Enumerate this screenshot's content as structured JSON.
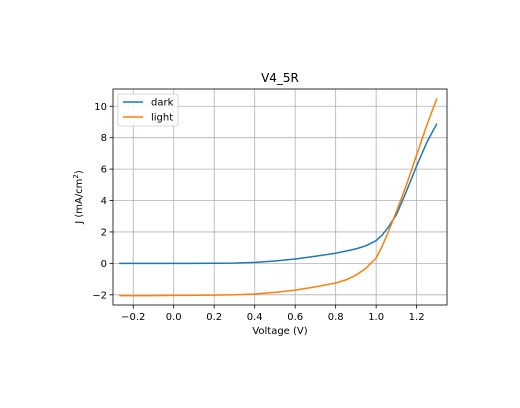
{
  "chart_data": {
    "type": "line",
    "title": "V4_5R",
    "xlabel": "Voltage (V)",
    "ylabel_main": "J (mA/cm",
    "ylabel_sup": "2",
    "ylabel_close": ")",
    "xlim": [
      -0.3,
      1.35
    ],
    "ylim": [
      -2.65,
      11.1
    ],
    "x_ticks": [
      -0.2,
      0.0,
      0.2,
      0.4,
      0.6,
      0.8,
      1.0,
      1.2
    ],
    "x_tick_labels": [
      "−0.2",
      "0.0",
      "0.2",
      "0.4",
      "0.6",
      "0.8",
      "1.0",
      "1.2"
    ],
    "y_ticks": [
      -2,
      0,
      2,
      4,
      6,
      8,
      10
    ],
    "y_tick_labels": [
      "−2",
      "0",
      "2",
      "4",
      "6",
      "8",
      "10"
    ],
    "grid": true,
    "legend": "top-left",
    "series": [
      {
        "name": "dark",
        "color": "#1f77b4",
        "x": [
          -0.27,
          -0.1,
          0.0,
          0.1,
          0.2,
          0.3,
          0.4,
          0.5,
          0.6,
          0.7,
          0.8,
          0.85,
          0.9,
          0.95,
          1.0,
          1.03,
          1.06,
          1.1,
          1.15,
          1.2,
          1.25,
          1.3
        ],
        "y": [
          0.0,
          0.0,
          0.0,
          0.0,
          0.01,
          0.02,
          0.06,
          0.15,
          0.28,
          0.45,
          0.65,
          0.78,
          0.92,
          1.12,
          1.45,
          1.8,
          2.3,
          3.1,
          4.6,
          6.2,
          7.7,
          8.9
        ]
      },
      {
        "name": "light",
        "color": "#ff7f0e",
        "x": [
          -0.27,
          -0.1,
          0.0,
          0.1,
          0.2,
          0.3,
          0.4,
          0.5,
          0.6,
          0.7,
          0.8,
          0.85,
          0.9,
          0.95,
          1.0,
          1.03,
          1.06,
          1.1,
          1.15,
          1.2,
          1.25,
          1.3
        ],
        "y": [
          -2.05,
          -2.05,
          -2.04,
          -2.03,
          -2.02,
          -2.0,
          -1.95,
          -1.85,
          -1.7,
          -1.5,
          -1.25,
          -1.05,
          -0.75,
          -0.3,
          0.35,
          1.1,
          2.0,
          3.3,
          5.0,
          6.9,
          8.8,
          10.5
        ]
      }
    ]
  }
}
